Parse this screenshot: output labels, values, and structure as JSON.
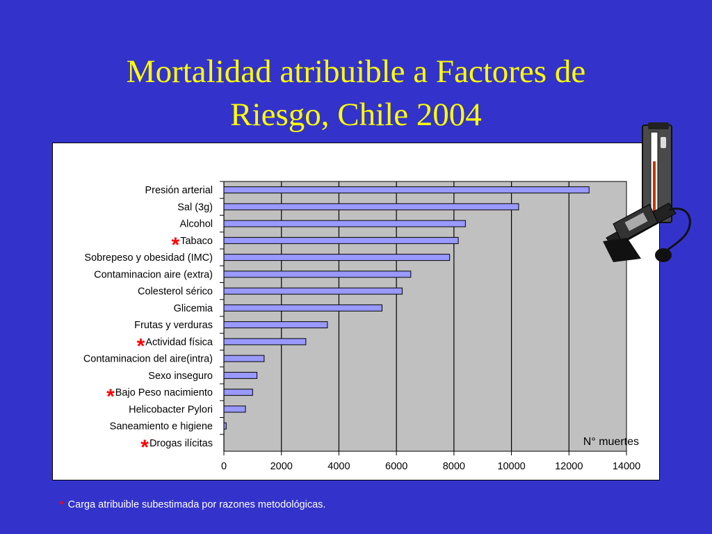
{
  "title_line1": "Mortalidad atribuible a Factores de",
  "title_line2": "Riesgo, Chile 2004",
  "footnote_star": "*",
  "footnote_text": "Carga atribuible subestimada por razones metodológicas.",
  "colors": {
    "background": "#3333cc",
    "title": "#ffff00",
    "bar_fill": "#9999ff",
    "plot_bg": "#c0c0c0",
    "star": "#ff0000"
  },
  "chart_data": {
    "type": "bar",
    "orientation": "horizontal",
    "title": "",
    "xlabel": "N° muertes",
    "ylabel": "",
    "xlim": [
      0,
      14000
    ],
    "xticks": [
      0,
      2000,
      4000,
      6000,
      8000,
      10000,
      12000,
      14000
    ],
    "grid": "vertical",
    "categories": [
      "Presión  arterial",
      "Sal (3g)",
      "Alcohol",
      "Tabaco",
      "Sobrepeso y obesidad (IMC)",
      "Contaminacion aire (extra)",
      "Colesterol sérico",
      "Glicemia",
      "Frutas y verduras",
      "Actividad física",
      "Contaminacion del aire(intra)",
      "Sexo inseguro",
      "Bajo Peso nacimiento",
      "Helicobacter Pylori",
      "Saneamiento e higiene",
      "Drogas ilícitas"
    ],
    "values": [
      12700,
      10250,
      8400,
      8150,
      7850,
      6500,
      6200,
      5500,
      3600,
      2850,
      1400,
      1150,
      1000,
      750,
      80,
      0
    ],
    "starred": [
      false,
      false,
      false,
      true,
      false,
      false,
      false,
      false,
      false,
      true,
      false,
      false,
      true,
      false,
      false,
      true
    ]
  }
}
